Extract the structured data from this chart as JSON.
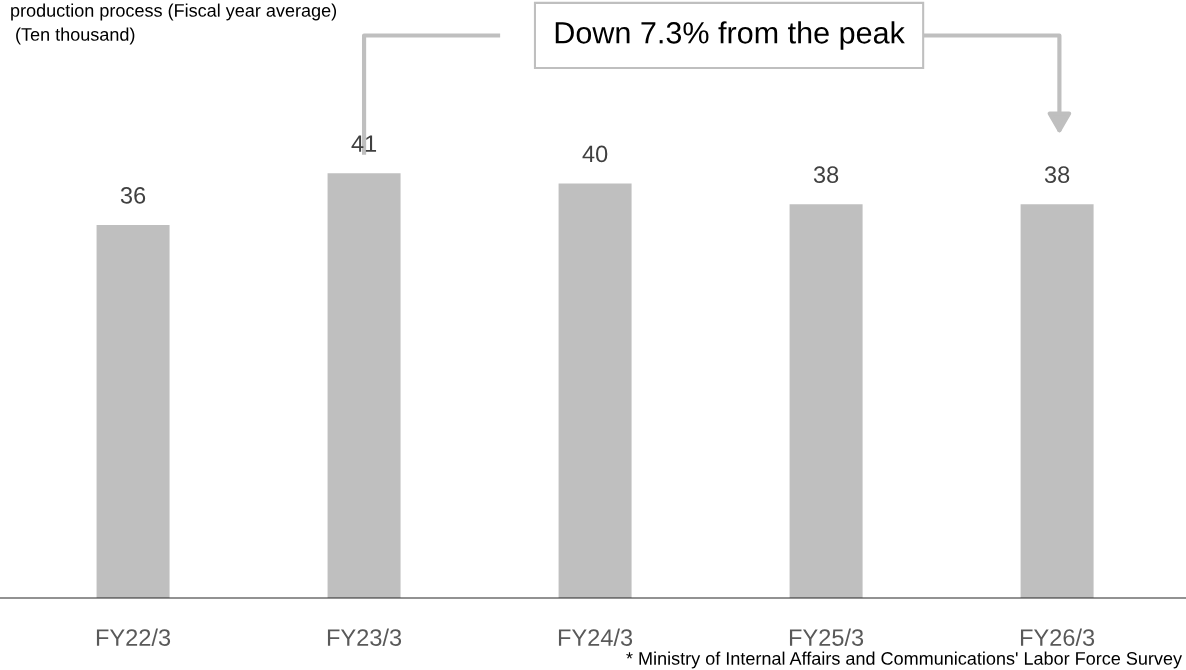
{
  "chart_data": {
    "type": "bar",
    "title": "production process (Fiscal year average)",
    "categories": [
      "FY22/3",
      "FY23/3",
      "FY24/3",
      "FY25/3",
      "FY26/3"
    ],
    "values": [
      36,
      41,
      40,
      38,
      38
    ],
    "color": "#bfbfbf",
    "data_labels": true,
    "grid": false,
    "annotations": [
      "Down 7.3% from the peak",
      " (Ten thousand)",
      "* Ministry of Internal Affairs and Communications' Labor Force Survey"
    ]
  }
}
